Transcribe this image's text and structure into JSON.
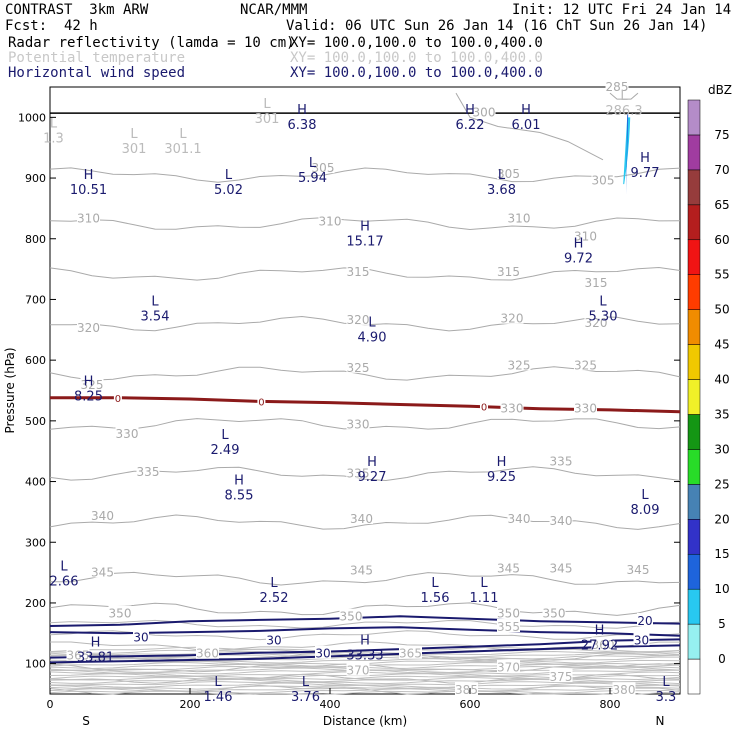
{
  "header": {
    "model": "CONTRAST  3km ARW",
    "center": "NCAR/MMM",
    "init": "Init: 12 UTC Fri 24 Jan 14",
    "fcst_label": "Fcst:",
    "fcst_value": "42 h",
    "valid": "Valid: 06 UTC Sun 26 Jan 14 (16 ChT Sun 26 Jan 14)"
  },
  "fields": [
    {
      "name": "Radar reflectivity (lamda = 10 cm)",
      "xy": "XY= 100.0,100.0 to 100.0,400.0",
      "style": "black"
    },
    {
      "name": "Potential temperature",
      "xy": "XY= 100.0,100.0 to 100.0,400.0",
      "style": "gray"
    },
    {
      "name": "Horizontal wind speed",
      "xy": "XY= 100.0,100.0 to 100.0,400.0",
      "style": "navy"
    }
  ],
  "chart_data": {
    "type": "contour-cross-section",
    "xlabel": "Distance (km)",
    "ylabel": "Pressure (hPa)",
    "xlim": [
      0,
      900
    ],
    "ylim": [
      1050,
      50
    ],
    "x_ticks": [
      0,
      200,
      400,
      600,
      800
    ],
    "y_ticks": [
      100,
      200,
      300,
      400,
      500,
      600,
      700,
      800,
      900,
      1000
    ],
    "x_end_labels": {
      "left": "S",
      "right": "N"
    },
    "colorbar": {
      "unit": "dBZ",
      "levels": [
        0,
        5,
        10,
        15,
        20,
        25,
        30,
        35,
        40,
        45,
        50,
        55,
        60,
        65,
        70,
        75
      ],
      "colors": [
        "#ffffff",
        "#96f0f0",
        "#28c8f0",
        "#1e64dc",
        "#3232c8",
        "#4682b4",
        "#28dc28",
        "#149614",
        "#f0f028",
        "#f0c800",
        "#f08c00",
        "#ff3c00",
        "#f01414",
        "#b41e1e",
        "#963c3c",
        "#a03ca0",
        "#b48cc8"
      ]
    },
    "theta_contours": [
      {
        "value": 285,
        "color": "#aaaaaa"
      },
      {
        "value": 300,
        "color": "#aaaaaa"
      },
      {
        "value": 305,
        "color": "#aaaaaa"
      },
      {
        "value": 310,
        "color": "#aaaaaa"
      },
      {
        "value": 315,
        "color": "#aaaaaa"
      },
      {
        "value": 320,
        "color": "#aaaaaa"
      },
      {
        "value": 325,
        "color": "#aaaaaa"
      },
      {
        "value": 330,
        "color": "#aaaaaa"
      },
      {
        "value": 335,
        "color": "#aaaaaa"
      },
      {
        "value": 340,
        "color": "#aaaaaa"
      },
      {
        "value": 345,
        "color": "#aaaaaa"
      },
      {
        "value": 350,
        "color": "#aaaaaa"
      },
      {
        "value": 355,
        "color": "#aaaaaa"
      },
      {
        "value": 360,
        "color": "#aaaaaa"
      },
      {
        "value": 365,
        "color": "#aaaaaa"
      },
      {
        "value": 370,
        "color": "#aaaaaa"
      },
      {
        "value": 375,
        "color": "#aaaaaa"
      },
      {
        "value": 380,
        "color": "#aaaaaa"
      },
      {
        "value": 385,
        "color": "#aaaaaa"
      }
    ],
    "theta_labels": [
      {
        "t": "350",
        "x": 100,
        "p": 184
      },
      {
        "t": "350",
        "x": 430,
        "p": 179
      },
      {
        "t": "350",
        "x": 655,
        "p": 184
      },
      {
        "t": "350",
        "x": 720,
        "p": 184
      },
      {
        "t": "345",
        "x": 75,
        "p": 252
      },
      {
        "t": "345",
        "x": 445,
        "p": 255
      },
      {
        "t": "345",
        "x": 655,
        "p": 258
      },
      {
        "t": "345",
        "x": 730,
        "p": 258
      },
      {
        "t": "345",
        "x": 840,
        "p": 256
      },
      {
        "t": "340",
        "x": 75,
        "p": 345
      },
      {
        "t": "340",
        "x": 445,
        "p": 340
      },
      {
        "t": "340",
        "x": 670,
        "p": 340
      },
      {
        "t": "340",
        "x": 730,
        "p": 337
      },
      {
        "t": "335",
        "x": 140,
        "p": 417
      },
      {
        "t": "335",
        "x": 440,
        "p": 415
      },
      {
        "t": "335",
        "x": 730,
        "p": 435
      },
      {
        "t": "330",
        "x": 110,
        "p": 480
      },
      {
        "t": "330",
        "x": 440,
        "p": 496
      },
      {
        "t": "330",
        "x": 660,
        "p": 522
      },
      {
        "t": "330",
        "x": 765,
        "p": 522
      },
      {
        "t": "325",
        "x": 60,
        "p": 561
      },
      {
        "t": "325",
        "x": 440,
        "p": 589
      },
      {
        "t": "325",
        "x": 670,
        "p": 593
      },
      {
        "t": "325",
        "x": 765,
        "p": 593
      },
      {
        "t": "320",
        "x": 55,
        "p": 655
      },
      {
        "t": "320",
        "x": 440,
        "p": 668
      },
      {
        "t": "320",
        "x": 660,
        "p": 670
      },
      {
        "t": "320",
        "x": 780,
        "p": 663
      },
      {
        "t": "315",
        "x": 440,
        "p": 747
      },
      {
        "t": "315",
        "x": 655,
        "p": 747
      },
      {
        "t": "315",
        "x": 780,
        "p": 729
      },
      {
        "t": "310",
        "x": 55,
        "p": 835
      },
      {
        "t": "310",
        "x": 400,
        "p": 830
      },
      {
        "t": "310",
        "x": 670,
        "p": 835
      },
      {
        "t": "310",
        "x": 765,
        "p": 805
      },
      {
        "t": "305",
        "x": 390,
        "p": 918
      },
      {
        "t": "305",
        "x": 655,
        "p": 908
      },
      {
        "t": "305",
        "x": 790,
        "p": 898
      },
      {
        "t": "300",
        "x": 620,
        "p": 1010
      },
      {
        "t": "285",
        "x": 810,
        "p": 1052
      }
    ],
    "upper_theta_labels": [
      {
        "t": "385",
        "x": 595,
        "p": 58
      },
      {
        "t": "375",
        "x": 730,
        "p": 80
      },
      {
        "t": "380",
        "x": 820,
        "p": 58
      },
      {
        "t": "370",
        "x": 440,
        "p": 90
      },
      {
        "t": "370",
        "x": 655,
        "p": 95
      },
      {
        "t": "365",
        "x": 515,
        "p": 118
      },
      {
        "t": "360",
        "x": 225,
        "p": 118
      },
      {
        "t": "365",
        "x": 40,
        "p": 115
      },
      {
        "t": "360",
        "x": 790,
        "p": 132
      },
      {
        "t": "355",
        "x": 655,
        "p": 162
      }
    ],
    "wind_contours": [
      {
        "value": 20,
        "color": "#1a1a6e"
      },
      {
        "value": 30,
        "color": "#1a1a6e"
      }
    ],
    "wind_labels": [
      {
        "t": "30",
        "x": 130,
        "p": 145
      },
      {
        "t": "30",
        "x": 320,
        "p": 140
      },
      {
        "t": "30",
        "x": 390,
        "p": 118
      },
      {
        "t": "30",
        "x": 845,
        "p": 140
      },
      {
        "t": "20",
        "x": 850,
        "p": 172
      }
    ],
    "freezing_level": {
      "value": 0,
      "color": "#8b1a1a",
      "points": [
        [
          0,
          538
        ],
        [
          100,
          538
        ],
        [
          200,
          536
        ],
        [
          300,
          532
        ],
        [
          400,
          530
        ],
        [
          500,
          527
        ],
        [
          600,
          524
        ],
        [
          700,
          520
        ],
        [
          800,
          518
        ],
        [
          900,
          515
        ]
      ],
      "labels": [
        {
          "t": "0",
          "x": 97,
          "p": 538
        },
        {
          "t": "0",
          "x": 302,
          "p": 532
        },
        {
          "t": "0",
          "x": 620,
          "p": 524
        },
        {
          "t": "0",
          "x": 760,
          "p": 519
        }
      ]
    },
    "extrema": [
      {
        "type": "L",
        "value": "1.46",
        "x": 240,
        "p": 60
      },
      {
        "type": "L",
        "value": "3.76",
        "x": 365,
        "p": 60
      },
      {
        "type": "L",
        "value": "3.3",
        "x": 880,
        "p": 60
      },
      {
        "type": "H",
        "value": "33.81",
        "x": 65,
        "p": 125
      },
      {
        "type": "H",
        "value": "33.33",
        "x": 450,
        "p": 128
      },
      {
        "type": "H",
        "value": "27.92",
        "x": 785,
        "p": 145
      },
      {
        "type": "L",
        "value": "2.66",
        "x": 20,
        "p": 250
      },
      {
        "type": "L",
        "value": "2.52",
        "x": 320,
        "p": 223
      },
      {
        "type": "L",
        "value": "1.56",
        "x": 550,
        "p": 223
      },
      {
        "type": "L",
        "value": "1.11",
        "x": 620,
        "p": 223
      },
      {
        "type": "L",
        "value": "8.09",
        "x": 850,
        "p": 368
      },
      {
        "type": "H",
        "value": "8.55",
        "x": 270,
        "p": 392
      },
      {
        "type": "H",
        "value": "9.27",
        "x": 460,
        "p": 422
      },
      {
        "type": "H",
        "value": "9.25",
        "x": 645,
        "p": 422
      },
      {
        "type": "L",
        "value": "2.49",
        "x": 250,
        "p": 467
      },
      {
        "type": "H",
        "value": "8.25",
        "x": 55,
        "p": 555
      },
      {
        "type": "L",
        "value": "4.90",
        "x": 460,
        "p": 652
      },
      {
        "type": "L",
        "value": "3.54",
        "x": 150,
        "p": 687
      },
      {
        "type": "L",
        "value": "5.30",
        "x": 790,
        "p": 687
      },
      {
        "type": "H",
        "value": "9.72",
        "x": 755,
        "p": 782
      },
      {
        "type": "H",
        "value": "15.17",
        "x": 450,
        "p": 810
      },
      {
        "type": "H",
        "value": "10.51",
        "x": 55,
        "p": 895
      },
      {
        "type": "L",
        "value": "5.02",
        "x": 255,
        "p": 895
      },
      {
        "type": "L",
        "value": "5.94",
        "x": 375,
        "p": 915
      },
      {
        "type": "L",
        "value": "3.68",
        "x": 645,
        "p": 895
      },
      {
        "type": "H",
        "value": "9.77",
        "x": 850,
        "p": 923
      },
      {
        "type": "H",
        "value": "6.38",
        "x": 360,
        "p": 1002
      },
      {
        "type": "H",
        "value": "6.22",
        "x": 600,
        "p": 1002
      },
      {
        "type": "H",
        "value": "6.01",
        "x": 680,
        "p": 1002
      }
    ],
    "theta_extrema": [
      {
        "type": "L",
        "value": "301",
        "x": 120,
        "p": 963
      },
      {
        "type": "L",
        "value": "301.1",
        "x": 190,
        "p": 963
      },
      {
        "type": "L",
        "value": "1.3",
        "x": 5,
        "p": 980
      },
      {
        "type": "L",
        "value": "301",
        "x": 310,
        "p": 1012
      },
      {
        "type": "L",
        "value": "286.3",
        "x": 820,
        "p": 1025
      }
    ],
    "reflectivity_cell": {
      "x": 826,
      "p_top": 890,
      "p_bottom": 1000,
      "max_dbz": 15
    }
  }
}
